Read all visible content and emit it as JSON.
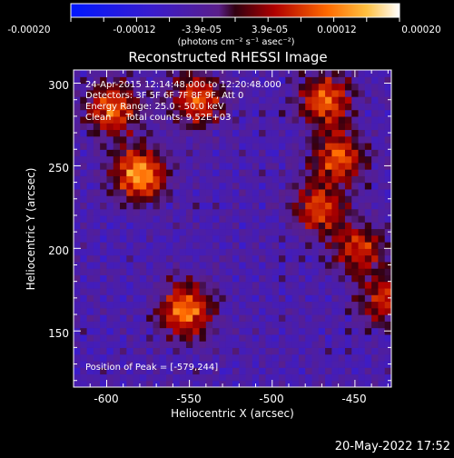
{
  "colorbar": {
    "ticks": [
      "-0.00020",
      "-0.00012",
      "-3.9e-05",
      "3.9e-05",
      "0.00012",
      "0.00020"
    ],
    "unit_label": "(photons cm⁻² s⁻¹ asec⁻²)",
    "range": [
      -0.0002,
      0.0002
    ]
  },
  "title": "Reconstructed RHESSI Image",
  "annotations": {
    "line1": "24-Apr-2015 12:14:48.000 to 12:20:48.000",
    "line2": "Detectors: 3F 5F 6F 7F 8F 9F, Att 0",
    "line3": "Energy Range: 25.0 - 50.0 keV",
    "line4": "Clean     Total counts: 9.52E+03",
    "peak": "Position of Peak = [-579,244]"
  },
  "footer_timestamp": "20-May-2022 17:52",
  "colors": {
    "low": "#1a1aff",
    "mid": "#5a1f9a",
    "high": "#ff5a00",
    "peak": "#ffff80"
  },
  "chart_data": {
    "type": "heatmap",
    "title": "Reconstructed RHESSI Image",
    "xlabel": "Heliocentric X (arcsec)",
    "ylabel": "Heliocentric Y (arcsec)",
    "xlim": [
      -620,
      -428
    ],
    "ylim": [
      116,
      308
    ],
    "x_ticks": [
      -600,
      -550,
      -500,
      -450
    ],
    "y_ticks": [
      150,
      200,
      250,
      300
    ],
    "x_tick_labels": [
      "-600",
      "-550",
      "-500",
      "-450"
    ],
    "y_tick_labels": [
      "150",
      "200",
      "250",
      "300"
    ],
    "peak_position": [
      -579,
      244
    ],
    "sources": [
      {
        "x": -580,
        "y": 245,
        "value": 0.0002
      },
      {
        "x": -597,
        "y": 285,
        "value": 0.00016
      },
      {
        "x": -545,
        "y": 290,
        "value": 0.00015
      },
      {
        "x": -552,
        "y": 163,
        "value": 0.00018
      },
      {
        "x": -468,
        "y": 290,
        "value": 0.00016
      },
      {
        "x": -460,
        "y": 255,
        "value": 0.00015
      },
      {
        "x": -472,
        "y": 225,
        "value": 0.00014
      },
      {
        "x": -448,
        "y": 200,
        "value": 0.00013
      },
      {
        "x": -432,
        "y": 170,
        "value": 0.00012
      }
    ]
  }
}
